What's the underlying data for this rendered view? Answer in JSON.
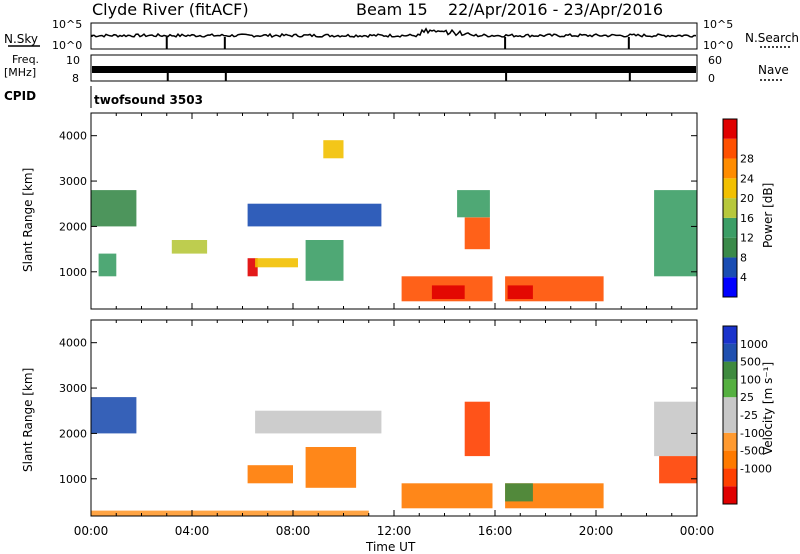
{
  "header": {
    "title": "Clyde River (fitACF)",
    "beam": "Beam 15",
    "date_range": "22/Apr/2016 - 23/Apr/2016"
  },
  "strips": {
    "nsky_label": "N.Sky",
    "nsky_ticks": [
      "10^5",
      "10^0"
    ],
    "nsearch_label": "N.Search",
    "nsearch_ticks": [
      "10^5",
      "10^0"
    ],
    "freq_label_1": "Freq.",
    "freq_label_2": "[MHz]",
    "freq_ticks": [
      "10",
      "8"
    ],
    "nave_label": "Nave",
    "nave_ticks": [
      "60",
      "0"
    ],
    "cpid_label": "CPID",
    "cpid_value": "twofsound 3503"
  },
  "colors": {
    "power_scale": [
      "#0000ff",
      "#1a4db3",
      "#3a8a4a",
      "#3c9e66",
      "#b7c83c",
      "#f2c000",
      "#ff8c00",
      "#ff5000",
      "#e00000"
    ],
    "velocity_scale": [
      "#e00000",
      "#ff4000",
      "#ff7a00",
      "#ff9a30",
      "#c8c8c8",
      "#c8c8c8",
      "#55b040",
      "#3f8a3f",
      "#2050b0",
      "#1a33cc"
    ]
  },
  "chart_data": [
    {
      "type": "heatmap",
      "title": "Power",
      "ylabel": "Slant Range [km]",
      "xlabel": "",
      "x_ticks": [
        "00:00",
        "04:00",
        "08:00",
        "12:00",
        "16:00",
        "20:00",
        "00:00"
      ],
      "y_ticks": [
        "1000",
        "2000",
        "3000",
        "4000"
      ],
      "ylim": [
        180,
        4500
      ],
      "xlim_hours": [
        0,
        24
      ],
      "colorbar_label": "Power [dB]",
      "colorbar_ticks": [
        "4",
        "8",
        "12",
        "16",
        "20",
        "24",
        "28"
      ],
      "regions": [
        {
          "t0": 12.3,
          "t1": 15.9,
          "r0": 350,
          "r1": 900,
          "level": 7
        },
        {
          "t0": 16.4,
          "t1": 20.3,
          "r0": 350,
          "r1": 900,
          "level": 7
        },
        {
          "t0": 13.5,
          "t1": 14.8,
          "r0": 400,
          "r1": 700,
          "level": 8
        },
        {
          "t0": 16.5,
          "t1": 17.5,
          "r0": 400,
          "r1": 700,
          "level": 8
        },
        {
          "t0": 0.0,
          "t1": 1.8,
          "r0": 2000,
          "r1": 2800,
          "level": 2
        },
        {
          "t0": 0.3,
          "t1": 1.0,
          "r0": 900,
          "r1": 1400,
          "level": 3
        },
        {
          "t0": 3.2,
          "t1": 4.6,
          "r0": 1400,
          "r1": 1700,
          "level": 4
        },
        {
          "t0": 6.2,
          "t1": 6.6,
          "r0": 900,
          "r1": 1300,
          "level": 8
        },
        {
          "t0": 6.5,
          "t1": 8.2,
          "r0": 1100,
          "r1": 1300,
          "level": 5
        },
        {
          "t0": 8.5,
          "t1": 10.0,
          "r0": 800,
          "r1": 1700,
          "level": 3
        },
        {
          "t0": 14.8,
          "t1": 15.8,
          "r0": 1500,
          "r1": 2200,
          "level": 7
        },
        {
          "t0": 14.5,
          "t1": 15.8,
          "r0": 2200,
          "r1": 2800,
          "level": 3
        },
        {
          "t0": 22.3,
          "t1": 24.0,
          "r0": 900,
          "r1": 2800,
          "level": 3
        },
        {
          "t0": 6.2,
          "t1": 11.5,
          "r0": 2000,
          "r1": 2500,
          "level": 1
        },
        {
          "t0": 9.2,
          "t1": 10.0,
          "r0": 3500,
          "r1": 3900,
          "level": 5
        }
      ]
    },
    {
      "type": "heatmap",
      "title": "Velocity",
      "ylabel": "Slant Range [km]",
      "xlabel": "Time UT",
      "x_ticks": [
        "00:00",
        "04:00",
        "08:00",
        "12:00",
        "16:00",
        "20:00",
        "00:00"
      ],
      "y_ticks": [
        "1000",
        "2000",
        "3000",
        "4000"
      ],
      "ylim": [
        180,
        4500
      ],
      "xlim_hours": [
        0,
        24
      ],
      "colorbar_label": "Velocity [m s⁻¹]",
      "colorbar_ticks": [
        "1000",
        "500",
        "100",
        "25",
        "-25",
        "-100",
        "-500",
        "-1000"
      ],
      "regions": [
        {
          "t0": 12.3,
          "t1": 15.9,
          "r0": 350,
          "r1": 900,
          "level": 2
        },
        {
          "t0": 16.4,
          "t1": 20.3,
          "r0": 350,
          "r1": 900,
          "level": 2
        },
        {
          "t0": 16.4,
          "t1": 17.5,
          "r0": 500,
          "r1": 900,
          "level": 7
        },
        {
          "t0": 0.0,
          "t1": 1.8,
          "r0": 2000,
          "r1": 2800,
          "level": 8
        },
        {
          "t0": 8.5,
          "t1": 10.5,
          "r0": 800,
          "r1": 1700,
          "level": 2
        },
        {
          "t0": 6.2,
          "t1": 8.0,
          "r0": 900,
          "r1": 1300,
          "level": 2
        },
        {
          "t0": 14.8,
          "t1": 15.8,
          "r0": 1500,
          "r1": 2700,
          "level": 1
        },
        {
          "t0": 22.3,
          "t1": 24.0,
          "r0": 1500,
          "r1": 2700,
          "level": 4
        },
        {
          "t0": 22.5,
          "t1": 24.0,
          "r0": 900,
          "r1": 1500,
          "level": 1
        },
        {
          "t0": 6.5,
          "t1": 11.5,
          "r0": 2000,
          "r1": 2500,
          "level": 4
        },
        {
          "t0": 0.0,
          "t1": 11.0,
          "r0": 180,
          "r1": 300,
          "level": 3
        }
      ]
    }
  ]
}
